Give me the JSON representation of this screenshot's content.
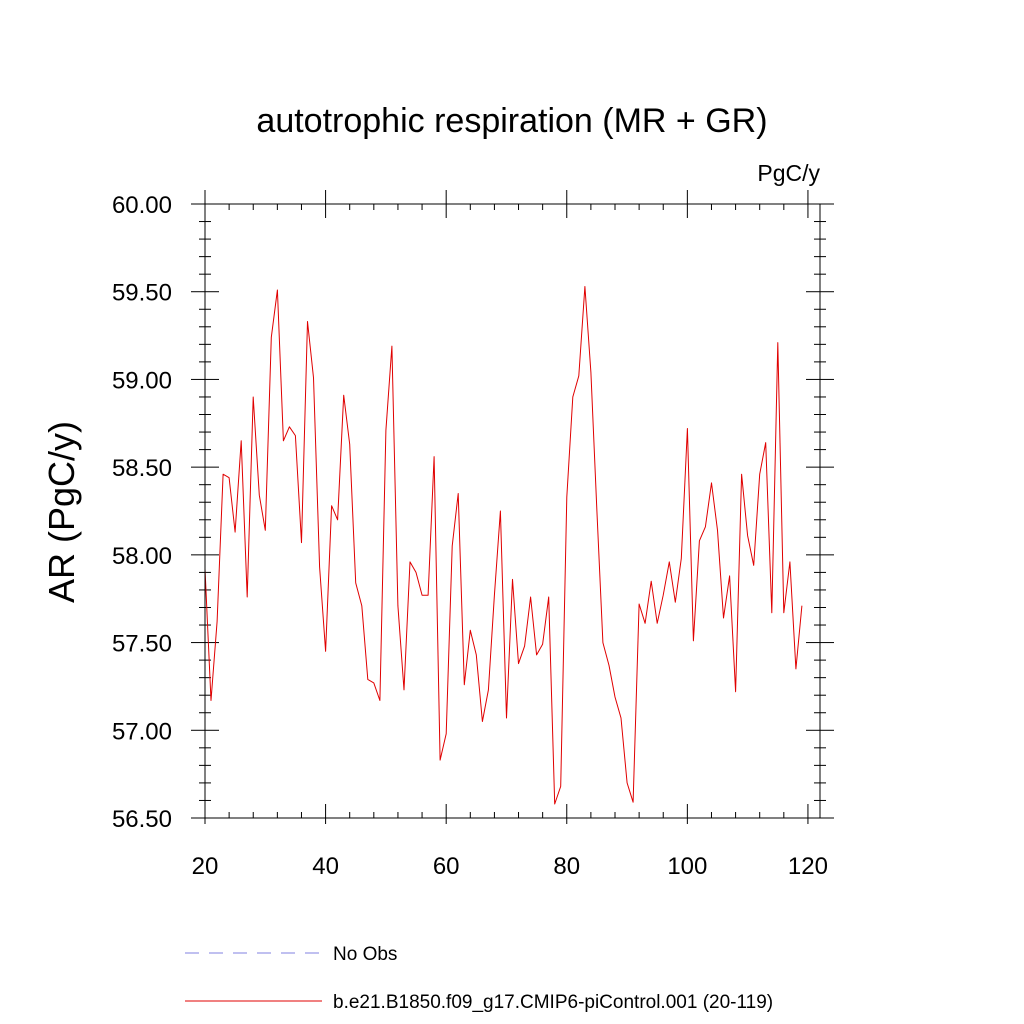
{
  "chart_data": {
    "type": "line",
    "title": "autotrophic respiration (MR + GR)",
    "units": "PgC/y",
    "ylabel": "AR  (PgC/y)",
    "xlabel": "",
    "xlim": [
      20,
      122
    ],
    "ylim": [
      56.5,
      60.0
    ],
    "x_ticks": [
      20,
      40,
      60,
      80,
      100,
      120
    ],
    "x_tick_labels": [
      "20",
      "40",
      "60",
      "80",
      "100",
      "120"
    ],
    "y_ticks": [
      56.5,
      57.0,
      57.5,
      58.0,
      58.5,
      59.0,
      59.5,
      60.0
    ],
    "y_tick_labels": [
      "56.50",
      "57.00",
      "57.50",
      "58.00",
      "58.50",
      "59.00",
      "59.50",
      "60.00"
    ],
    "grid": false,
    "legend_position": "bottom",
    "legend": [
      {
        "label": "No Obs",
        "color": "#8080e0",
        "style": "dashed"
      },
      {
        "label": "b.e21.B1850.f09_g17.CMIP6-piControl.001 (20-119)",
        "color": "#e00000",
        "style": "solid"
      }
    ],
    "series": [
      {
        "name": "b.e21.B1850.f09_g17.CMIP6-piControl.001 (20-119)",
        "color": "#e00000",
        "x_start": 20,
        "values": [
          57.92,
          57.17,
          57.62,
          58.46,
          58.44,
          58.13,
          58.65,
          57.76,
          58.9,
          58.34,
          58.14,
          59.24,
          59.51,
          58.65,
          58.73,
          58.68,
          58.07,
          59.33,
          59.01,
          57.93,
          57.45,
          58.28,
          58.2,
          58.91,
          58.63,
          57.84,
          57.71,
          57.29,
          57.27,
          57.17,
          58.71,
          59.19,
          57.71,
          57.23,
          57.96,
          57.9,
          57.77,
          57.77,
          58.56,
          56.83,
          56.98,
          58.05,
          58.35,
          57.26,
          57.57,
          57.43,
          57.05,
          57.23,
          57.77,
          58.25,
          57.07,
          57.86,
          57.38,
          57.48,
          57.76,
          57.43,
          57.49,
          57.76,
          56.58,
          56.68,
          58.33,
          58.9,
          59.02,
          59.53,
          59.04,
          58.25,
          57.5,
          57.37,
          57.19,
          57.07,
          56.7,
          56.59,
          57.72,
          57.61,
          57.85,
          57.61,
          57.77,
          57.96,
          57.73,
          57.98,
          58.72,
          57.51,
          58.08,
          58.16,
          58.41,
          58.14,
          57.64,
          57.88,
          57.22,
          58.46,
          58.11,
          57.94,
          58.46,
          58.64,
          57.67,
          59.21,
          57.67,
          57.96,
          57.35,
          57.71
        ]
      }
    ]
  }
}
